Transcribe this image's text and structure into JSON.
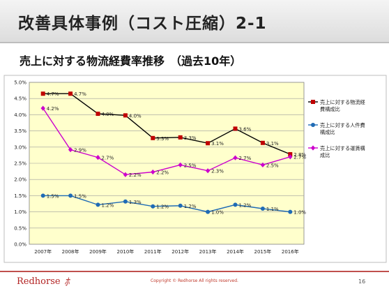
{
  "slide": {
    "title": "改善具体事例（コスト圧縮）2-1",
    "subtitle": "売上に対する物流経費率推移　（過去10年）",
    "brand": "Redhorse",
    "brand_mark": "ﾎ",
    "copyright": "Copyright © Redhorse All rights reserved.",
    "page_number": "16"
  },
  "chart_data": {
    "type": "line",
    "title": "",
    "xlabel": "",
    "ylabel": "",
    "categories": [
      "2007年",
      "2008年",
      "2009年",
      "2010年",
      "2011年",
      "2012年",
      "2013年",
      "2014年",
      "2015年",
      "2016年"
    ],
    "ylim": [
      0,
      5
    ],
    "yticks": [
      "0.0%",
      "0.5%",
      "1.0%",
      "1.5%",
      "2.0%",
      "2.5%",
      "3.0%",
      "3.5%",
      "4.0%",
      "4.5%",
      "5.0%"
    ],
    "grid": true,
    "legend_position": "right",
    "plot_background": "#ffffcc",
    "series": [
      {
        "name": "売上に対する物流経費構成比",
        "legend_lines": [
          "売上に対する物流経",
          "費構成比"
        ],
        "color": "#000000",
        "marker_color": "#c00000",
        "marker": "square",
        "values": [
          4.7,
          4.7,
          4.0,
          4.0,
          3.3,
          3.3,
          3.1,
          3.6,
          3.1,
          2.8
        ],
        "labels": [
          "4.7%",
          "4.7%",
          "4.0%",
          "4.0%",
          "3.3%",
          "3.3%",
          "3.1%",
          "3.6%",
          "3.1%",
          "2.8%"
        ],
        "plot_values": [
          4.65,
          4.65,
          4.03,
          3.98,
          3.28,
          3.3,
          3.12,
          3.57,
          3.13,
          2.78
        ]
      },
      {
        "name": "売上に対する人件費構成比",
        "legend_lines": [
          "売上に対する人件費",
          "構成比"
        ],
        "color": "#1f6bb5",
        "marker_color": "#1f6bb5",
        "marker": "circle",
        "values": [
          1.5,
          1.5,
          1.2,
          1.3,
          1.2,
          1.2,
          1.0,
          1.2,
          1.1,
          1.0
        ],
        "labels": [
          "1.5%",
          "1.5%",
          "1.2%",
          "1.3%",
          "1.2%",
          "1.2%",
          "1.0%",
          "1.2%",
          "1.1%",
          "1.0%"
        ],
        "plot_values": [
          1.5,
          1.5,
          1.22,
          1.32,
          1.17,
          1.19,
          1.0,
          1.22,
          1.1,
          1.0
        ]
      },
      {
        "name": "売上に対する運賃構成比",
        "legend_lines": [
          "売上に対する運賃構",
          "成比"
        ],
        "color": "#cc00cc",
        "marker_color": "#cc00cc",
        "marker": "diamond",
        "values": [
          4.2,
          2.9,
          2.7,
          2.2,
          2.2,
          2.5,
          2.3,
          2.7,
          2.5,
          2.7
        ],
        "labels": [
          "4.2%",
          "2.9%",
          "2.7%",
          "2.2%",
          "2.2%",
          "2.5%",
          "2.3%",
          "2.7%",
          "2.5%",
          "2.7%"
        ],
        "plot_values": [
          4.2,
          2.92,
          2.68,
          2.15,
          2.23,
          2.45,
          2.27,
          2.67,
          2.45,
          2.7
        ]
      }
    ]
  }
}
